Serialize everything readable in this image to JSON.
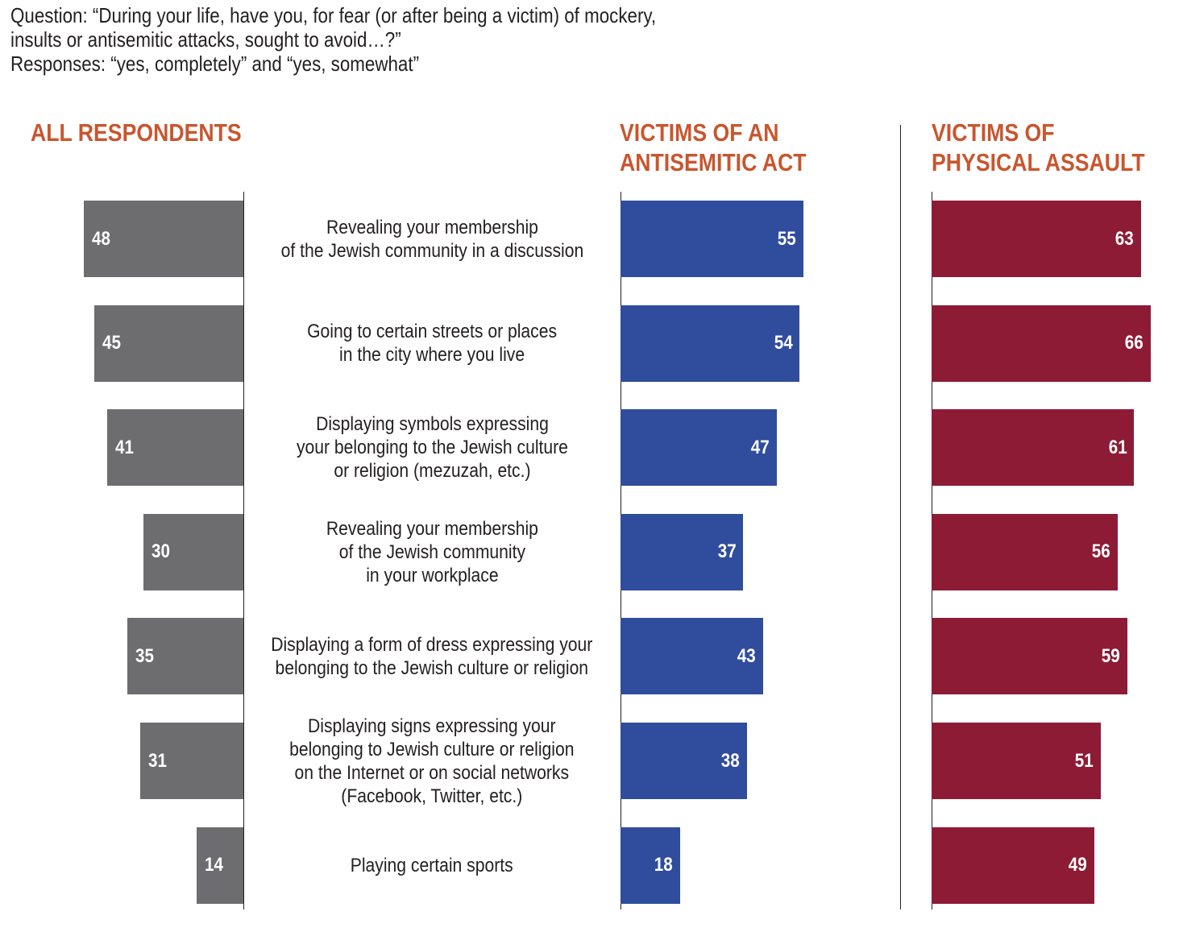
{
  "header": {
    "question_lines": [
      "Question: “During your life, have you, for fear (or after being a victim) of mockery,",
      "insults or antisemitic attacks, sought to avoid…?”",
      "Responses: “yes, completely” and “yes, somewhat”"
    ]
  },
  "colors": {
    "title": "#c8562e",
    "all_respondents": "#6d6d6f",
    "antisemitic_act": "#2f4d9c",
    "physical_assault": "#8e1b35",
    "axis": "#231f20"
  },
  "chart_data": {
    "type": "bar",
    "orientation": "horizontal",
    "title": "Question: “During your life, have you, for fear (or after being a victim) of mockery, insults or antisemitic attacks, sought to avoid…?” Responses: “yes, completely” and “yes, somewhat”",
    "unit": "%",
    "xlim": [
      0,
      70
    ],
    "grid": false,
    "categories": [
      "Revealing your membership\nof the Jewish community in a discussion",
      "Going to certain streets or places\nin the city where you live",
      "Displaying symbols expressing\nyour belonging to the Jewish culture\nor religion (mezuzah, etc.)",
      "Revealing your membership\nof the Jewish community\nin your workplace",
      "Displaying a form of dress expressing your\nbelonging to the Jewish culture or religion",
      "Displaying signs expressing your\nbelonging to Jewish culture or religion\non the Internet or on social networks\n(Facebook, Twitter, etc.)",
      "Playing certain sports"
    ],
    "series": [
      {
        "name": "ALL RESPONDENTS",
        "title_lines": [
          "ALL RESPONDENTS"
        ],
        "direction": "left",
        "values": [
          48,
          45,
          41,
          30,
          35,
          31,
          14
        ]
      },
      {
        "name": "VICTIMS OF AN ANTISEMITIC ACT",
        "title_lines": [
          "VICTIMS OF AN",
          "ANTISEMITIC ACT"
        ],
        "direction": "right",
        "values": [
          55,
          54,
          47,
          37,
          43,
          38,
          18
        ]
      },
      {
        "name": "VICTIMS OF PHYSICAL ASSAULT",
        "title_lines": [
          "VICTIMS OF",
          "PHYSICAL ASSAULT"
        ],
        "direction": "right",
        "values": [
          63,
          66,
          61,
          56,
          59,
          51,
          49
        ]
      }
    ]
  }
}
